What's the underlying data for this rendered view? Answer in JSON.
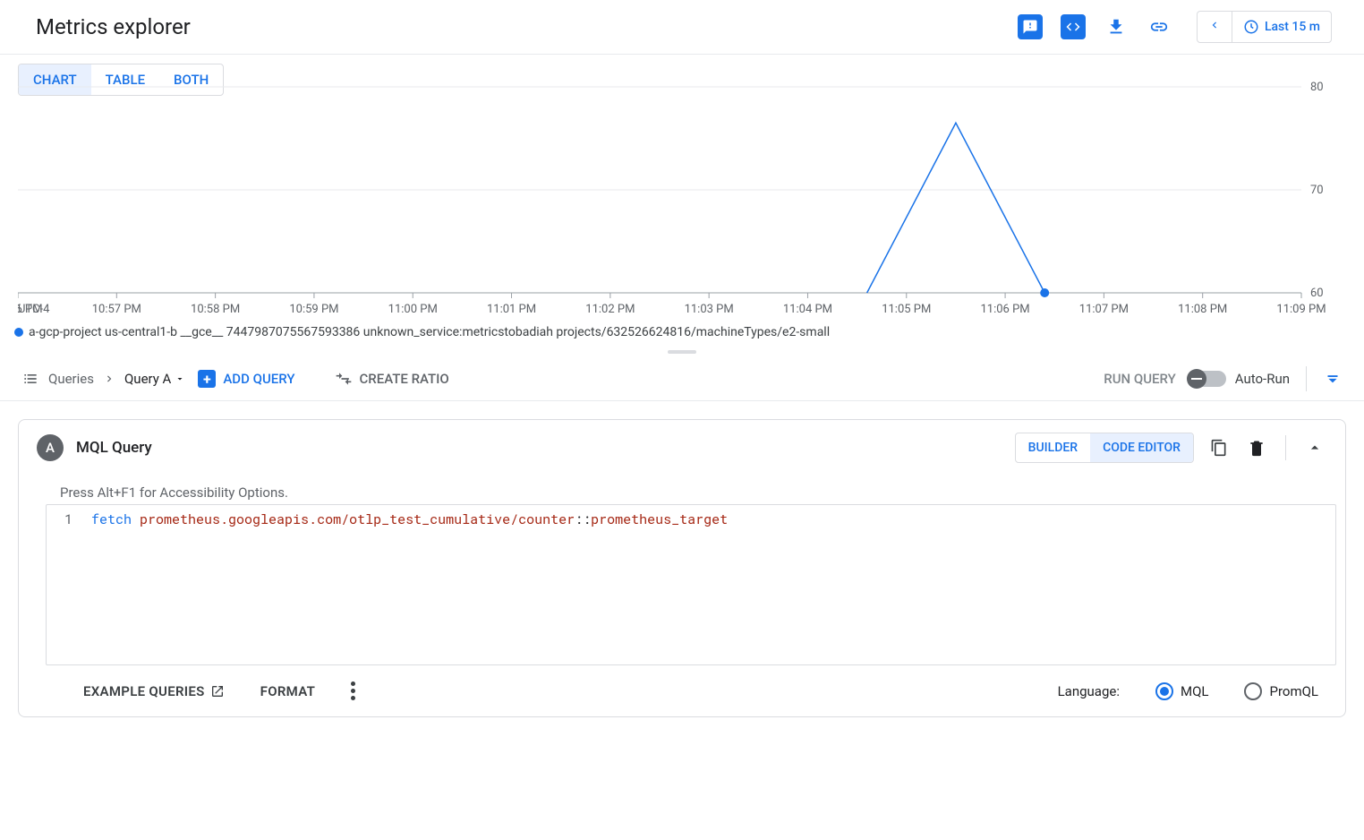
{
  "header": {
    "title": "Metrics explorer",
    "time_range": "Last 15 m"
  },
  "view_tabs": {
    "chart": "CHART",
    "table": "TABLE",
    "both": "BOTH",
    "active": "chart"
  },
  "chart": {
    "type": "line",
    "timezone_label": "UTC-4",
    "x_ticks": [
      "10:56 PM",
      "10:57 PM",
      "10:58 PM",
      "10:59 PM",
      "11:00 PM",
      "11:01 PM",
      "11:02 PM",
      "11:03 PM",
      "11:04 PM",
      "11:05 PM",
      "11:06 PM",
      "11:07 PM",
      "11:08 PM",
      "11:09 PM"
    ],
    "y_ticks": [
      60,
      70,
      80
    ],
    "ylim": [
      60,
      80
    ],
    "data_x_indices": [
      8.6,
      9.5,
      10.4
    ],
    "data_y": [
      60,
      76.5,
      60
    ],
    "endpoint_index": 2,
    "line_color": "#1a73e8",
    "grid_color": "#e8eaed",
    "axis_color": "#9aa0a6",
    "background_color": "#ffffff",
    "label_fontsize": 13,
    "line_width": 1.5
  },
  "legend": {
    "color": "#1a73e8",
    "text": "a-gcp-project us-central1-b __gce__ 7447987075567593386 unknown_service:metricstobadiah projects/632526624816/machineTypes/e2-small"
  },
  "toolbar": {
    "queries_label": "Queries",
    "query_a": "Query A",
    "add_query": "ADD QUERY",
    "create_ratio": "CREATE RATIO",
    "run_query": "RUN QUERY",
    "auto_run": "Auto-Run"
  },
  "card": {
    "badge": "A",
    "title": "MQL Query",
    "builder": "BUILDER",
    "code_editor": "CODE EDITOR",
    "a11y_hint": "Press Alt+F1 for Accessibility Options.",
    "line_number": "1",
    "code_kw": "fetch",
    "code_path": "prometheus.googleapis.com/otlp_test_cumulative/counter",
    "code_sep": "::",
    "code_tail": "prometheus_target"
  },
  "footer": {
    "example_queries": "EXAMPLE QUERIES",
    "format": "FORMAT",
    "language_label": "Language:",
    "mql": "MQL",
    "promql": "PromQL",
    "selected": "mql"
  },
  "colors": {
    "primary": "#1a73e8",
    "text": "#202124",
    "muted": "#5f6368",
    "border": "#dadce0"
  }
}
